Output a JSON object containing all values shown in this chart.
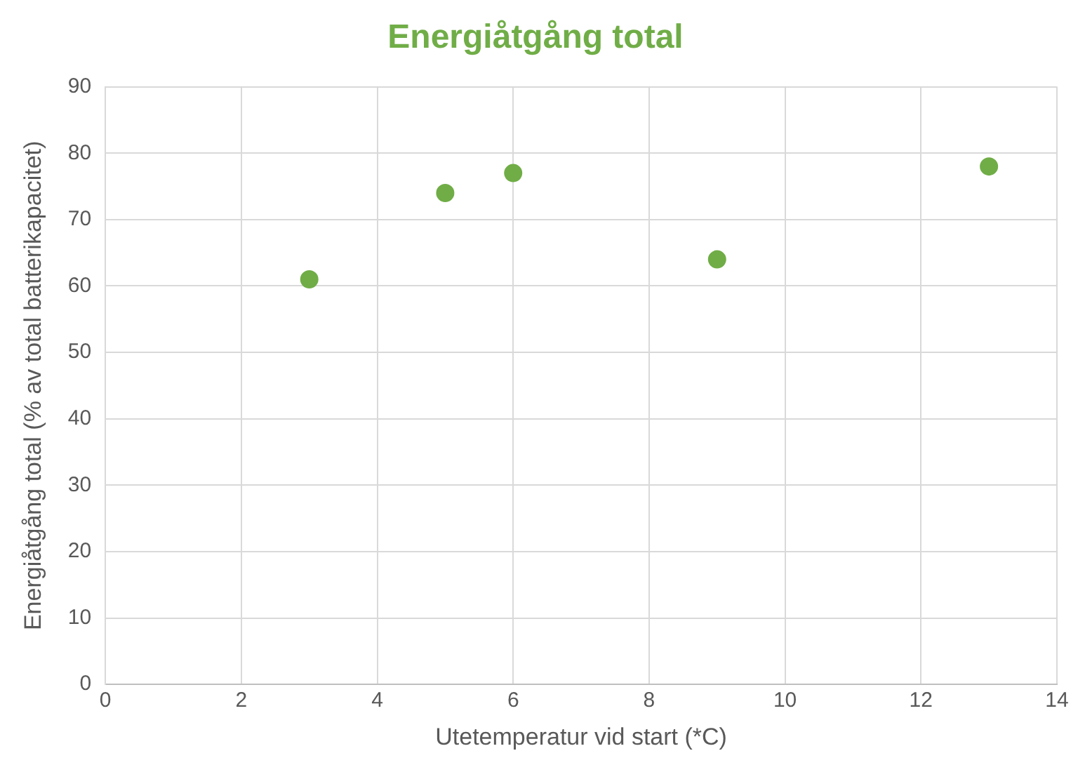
{
  "chart_data": {
    "type": "scatter",
    "title": "Energiåtgång total",
    "xlabel": "Utetemperatur vid start (*C)",
    "ylabel": "Energiåtgång total (% av total batterikapacitet)",
    "x": [
      3,
      5,
      6,
      9,
      13
    ],
    "series": [
      {
        "color": "#70ad47",
        "values": [
          61,
          74,
          77,
          64,
          78
        ]
      }
    ],
    "xlim": [
      0,
      14
    ],
    "xticks": [
      0,
      2,
      4,
      6,
      8,
      10,
      12,
      14
    ],
    "ylim": [
      0,
      90
    ],
    "yticks": [
      0,
      10,
      20,
      30,
      40,
      50,
      60,
      70,
      80,
      90
    ],
    "grid": true,
    "legend": false,
    "marker": "circle"
  }
}
